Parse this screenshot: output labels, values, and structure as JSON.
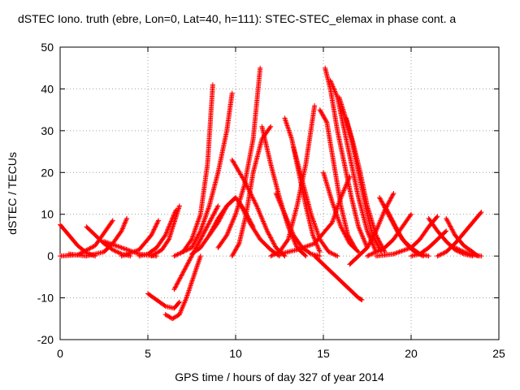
{
  "chart_data": {
    "type": "scatter",
    "title": "dSTEC Iono. truth (ebre, Lon=0, Lat=40, h=111): STEC-STEC_elemax in phase cont. a",
    "xlabel": "GPS time / hours of day 327 of year 2014",
    "ylabel": "dSTEC  / TECUs",
    "xlim": [
      0,
      25
    ],
    "ylim": [
      -20,
      50
    ],
    "xticks": [
      0,
      5,
      10,
      15,
      20,
      25
    ],
    "yticks": [
      -20,
      -10,
      0,
      10,
      20,
      30,
      40,
      50
    ],
    "grid": true,
    "marker": "+",
    "color": "#ff0000",
    "arcs": [
      {
        "x": [
          0.0,
          0.5,
          1.0,
          1.5,
          2.0
        ],
        "y": [
          7.5,
          5,
          2.5,
          0.8,
          0
        ]
      },
      {
        "x": [
          0.0,
          1.0,
          2.0,
          2.5,
          3.0
        ],
        "y": [
          0,
          0.3,
          2.5,
          5.5,
          8.5
        ]
      },
      {
        "x": [
          0.5,
          1.5,
          2.5,
          3.0,
          3.5,
          3.8
        ],
        "y": [
          0.5,
          0,
          1,
          3,
          6,
          9
        ]
      },
      {
        "x": [
          1.5,
          2.5,
          3.0,
          3.5,
          4.0
        ],
        "y": [
          7,
          3,
          1.5,
          0.5,
          0
        ]
      },
      {
        "x": [
          2.5,
          3.5,
          4.5,
          5.0,
          5.5
        ],
        "y": [
          3.5,
          2,
          0.5,
          0.2,
          0
        ]
      },
      {
        "x": [
          3.5,
          4.5,
          5.2,
          5.6
        ],
        "y": [
          0,
          1.5,
          5,
          8.5
        ]
      },
      {
        "x": [
          4.5,
          5.0,
          5.5,
          6.0,
          6.3,
          6.6
        ],
        "y": [
          0,
          0.5,
          2,
          5,
          8,
          11
        ]
      },
      {
        "x": [
          5.2,
          5.8,
          6.2,
          6.5,
          6.8
        ],
        "y": [
          0,
          1.5,
          4,
          8,
          12
        ]
      },
      {
        "x": [
          5.0,
          5.5,
          6.0,
          6.5,
          6.8
        ],
        "y": [
          -9,
          -10.5,
          -12,
          -12.5,
          -11
        ]
      },
      {
        "x": [
          6.0,
          6.4,
          6.8,
          7.2,
          7.6,
          8.0
        ],
        "y": [
          -14,
          -15,
          -14,
          -10,
          -5,
          0
        ]
      },
      {
        "x": [
          6.5,
          7.0,
          7.5,
          8.0,
          8.5,
          9.0
        ],
        "y": [
          -8,
          -4,
          0,
          4,
          8,
          12
        ]
      },
      {
        "x": [
          6.5,
          7.0,
          7.5,
          8.0,
          8.4,
          8.7
        ],
        "y": [
          0,
          1,
          4,
          10,
          22,
          41
        ]
      },
      {
        "x": [
          7.0,
          7.5,
          8.0,
          8.5,
          9.0,
          9.5,
          9.8
        ],
        "y": [
          1,
          2,
          6,
          12,
          20,
          30,
          39
        ]
      },
      {
        "x": [
          7.5,
          8.0,
          8.5,
          9.0,
          9.5,
          10.0
        ],
        "y": [
          0.5,
          2,
          5,
          9,
          12,
          14
        ]
      },
      {
        "x": [
          8.5,
          9.0,
          9.5,
          10.0,
          10.5,
          11.0
        ],
        "y": [
          5,
          8,
          12,
          14,
          11,
          7
        ]
      },
      {
        "x": [
          9.0,
          9.5,
          10.0,
          10.5,
          11.0,
          11.4
        ],
        "y": [
          2,
          5,
          10,
          17,
          28,
          45
        ]
      },
      {
        "x": [
          9.8,
          10.2,
          10.6,
          11.0,
          11.5,
          12.0
        ],
        "y": [
          0,
          3,
          10,
          20,
          28,
          31
        ]
      },
      {
        "x": [
          9.8,
          10.5,
          11.2,
          11.8,
          12.3,
          12.8
        ],
        "y": [
          23,
          18,
          12,
          6,
          2,
          0
        ]
      },
      {
        "x": [
          10.2,
          10.8,
          11.4,
          12.0,
          12.5
        ],
        "y": [
          13,
          8,
          4,
          1.5,
          0
        ]
      },
      {
        "x": [
          11.5,
          12.0,
          12.5,
          13.0,
          13.5,
          14.0
        ],
        "y": [
          31,
          22,
          14,
          7,
          2,
          0
        ]
      },
      {
        "x": [
          12.0,
          12.5,
          13.0,
          13.5,
          14.0,
          14.5
        ],
        "y": [
          0,
          1,
          4,
          12,
          22,
          36
        ]
      },
      {
        "x": [
          12.3,
          12.8,
          13.3,
          13.8,
          14.3,
          14.8
        ],
        "y": [
          15,
          10,
          5,
          2,
          0.5,
          0
        ]
      },
      {
        "x": [
          12.8,
          13.2,
          13.6,
          14.0,
          14.4,
          14.8
        ],
        "y": [
          33,
          28,
          20,
          12,
          5,
          1
        ]
      },
      {
        "x": [
          13.3,
          13.8,
          14.3,
          14.8,
          15.3,
          15.8
        ],
        "y": [
          26,
          18,
          10,
          4,
          1,
          0
        ]
      },
      {
        "x": [
          12.5,
          13.5,
          14.5,
          15.5,
          16.0,
          16.5
        ],
        "y": [
          0.5,
          1.5,
          3,
          8,
          14,
          19
        ]
      },
      {
        "x": [
          14.5,
          15.0,
          15.5,
          16.0,
          16.5,
          17.0,
          17.2
        ],
        "y": [
          0,
          -2,
          -4,
          -6,
          -8,
          -10,
          -10.5
        ]
      },
      {
        "x": [
          14.8,
          15.2,
          15.6,
          16.0,
          16.4,
          16.8
        ],
        "y": [
          35,
          32,
          22,
          12,
          5,
          2
        ]
      },
      {
        "x": [
          15.1,
          15.4,
          15.8,
          16.2,
          16.6,
          17.0,
          17.5
        ],
        "y": [
          45,
          40,
          30,
          22,
          14,
          7,
          2
        ]
      },
      {
        "x": [
          15.4,
          15.8,
          16.2,
          16.6,
          17.0,
          17.5,
          18.0
        ],
        "y": [
          42,
          38,
          30,
          22,
          14,
          6,
          1
        ]
      },
      {
        "x": [
          15.9,
          16.2,
          16.6,
          17.0,
          17.4,
          17.8,
          18.3
        ],
        "y": [
          38,
          34,
          28,
          20,
          12,
          5,
          1
        ]
      },
      {
        "x": [
          16.3,
          16.7,
          17.1,
          17.5,
          18.0,
          18.5
        ],
        "y": [
          33,
          27,
          20,
          12,
          5,
          1
        ]
      },
      {
        "x": [
          15.0,
          15.5,
          16.0,
          16.5,
          17.0
        ],
        "y": [
          20,
          13,
          7,
          3,
          1
        ]
      },
      {
        "x": [
          16.5,
          17.0,
          17.5,
          18.0,
          18.5,
          19.0
        ],
        "y": [
          -2,
          0,
          2,
          6,
          11,
          15
        ]
      },
      {
        "x": [
          17.5,
          18.0,
          18.5,
          19.0,
          19.5,
          20.0
        ],
        "y": [
          0,
          1,
          2,
          4,
          7,
          10
        ]
      },
      {
        "x": [
          18.2,
          18.7,
          19.2,
          19.7,
          20.2,
          20.7
        ],
        "y": [
          14,
          10,
          6,
          3,
          1,
          0
        ]
      },
      {
        "x": [
          18.5,
          19.0,
          19.5,
          20.0,
          20.5,
          21.0
        ],
        "y": [
          12,
          8,
          4,
          2,
          0.5,
          0
        ]
      },
      {
        "x": [
          18.0,
          19.0,
          20.0,
          20.5,
          21.0,
          21.5
        ],
        "y": [
          0,
          0.5,
          2,
          4,
          7,
          9.5
        ]
      },
      {
        "x": [
          20.0,
          20.5,
          21.0,
          21.5,
          22.0
        ],
        "y": [
          0,
          0.5,
          2,
          4,
          6
        ]
      },
      {
        "x": [
          21.0,
          21.5,
          22.0,
          22.5,
          23.0,
          23.5
        ],
        "y": [
          9,
          6,
          3.5,
          1.5,
          0.5,
          0
        ]
      },
      {
        "x": [
          22.0,
          22.5,
          23.0,
          23.5,
          23.8
        ],
        "y": [
          9,
          5,
          2.5,
          1,
          0
        ]
      },
      {
        "x": [
          21.5,
          22.0,
          22.5,
          23.0,
          23.5,
          24.0
        ],
        "y": [
          0,
          1,
          3,
          5.5,
          8,
          10.5
        ]
      },
      {
        "x": [
          22.5,
          23.0,
          23.5,
          24.0
        ],
        "y": [
          2,
          1,
          0.3,
          0
        ]
      }
    ]
  }
}
